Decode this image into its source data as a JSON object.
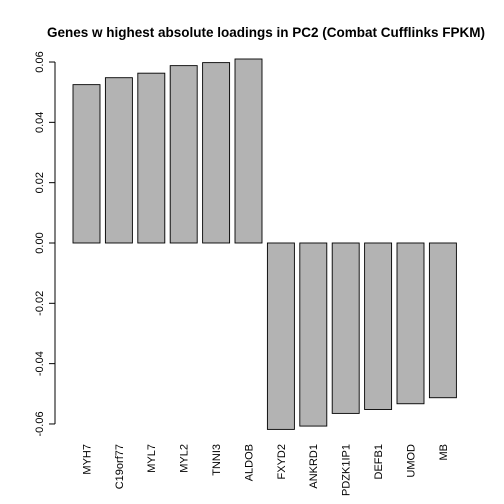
{
  "chart_data": {
    "type": "bar",
    "title": "Genes w highest absolute loadings in PC2 (Combat Cufflinks FPKM)",
    "xlabel": "",
    "ylabel": "",
    "categories": [
      "MYH7",
      "C19orf77",
      "MYL7",
      "MYL2",
      "TNNI3",
      "ALDOB",
      "FXYD2",
      "ANKRD1",
      "PDZK1IP1",
      "DEFB1",
      "UMOD",
      "MB"
    ],
    "values": [
      0.0525,
      0.0548,
      0.0563,
      0.0588,
      0.0598,
      0.061,
      -0.0618,
      -0.0607,
      -0.0565,
      -0.0552,
      -0.0533,
      -0.0513
    ],
    "ylim": [
      -0.062,
      0.061
    ],
    "yticks": [
      -0.06,
      -0.04,
      -0.02,
      0.0,
      0.02,
      0.04,
      0.06
    ],
    "ytick_labels": [
      "-0.06",
      "-0.04",
      "-0.02",
      "0.00",
      "0.02",
      "0.04",
      "0.06"
    ],
    "grid": false,
    "legend": "none",
    "bar_color": "#b3b3b3",
    "edge_color": "#000000"
  }
}
